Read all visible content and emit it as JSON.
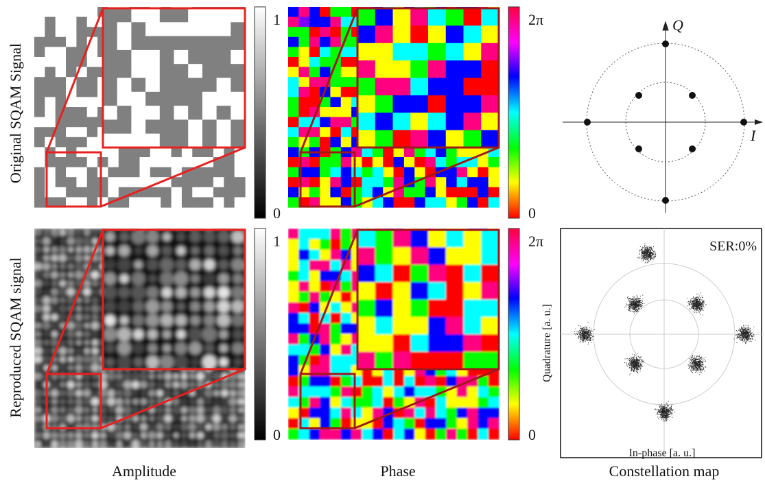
{
  "rows": [
    "Original SQAM Signal",
    "Reproduced SQAM signal"
  ],
  "columns": [
    "Amplitude",
    "Phase",
    "Constellation map"
  ],
  "colorbars": {
    "amplitude": {
      "top": "1",
      "bottom": "0"
    },
    "phase": {
      "top": "2π",
      "bottom": "0"
    }
  },
  "constellation": {
    "q_label": "Q",
    "i_label": "I"
  },
  "scatter": {
    "ser": "SER:0%",
    "y_label": "Quadrature [a. u.]",
    "x_label": "In-phase [a. u.]"
  }
}
